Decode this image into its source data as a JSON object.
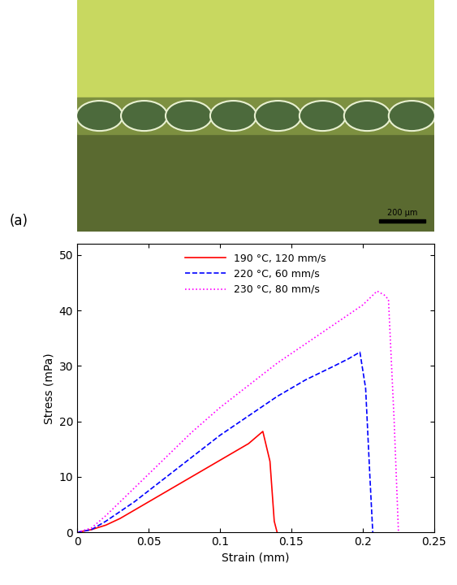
{
  "panel_a": {
    "label": "(a)",
    "scale_bar": "200 µm"
  },
  "chart_data": {
    "type": "line",
    "x_label": "Strain (mm)",
    "y_label": "Stress (mPa)",
    "xlim": [
      0,
      0.25
    ],
    "xticks": [
      0,
      0.05,
      0.1,
      0.15,
      0.2,
      0.25
    ],
    "ylim": [
      0,
      52
    ],
    "yticks": [
      0,
      10,
      20,
      30,
      40,
      50
    ],
    "legend": "upper center",
    "grid": false,
    "series": [
      {
        "name": "190 °C, 120 mm/s",
        "color": "#ff0000",
        "line_style": "solid",
        "x": [
          0,
          0.01,
          0.02,
          0.03,
          0.05,
          0.07,
          0.09,
          0.11,
          0.12,
          0.13,
          0.135,
          0.138,
          0.14
        ],
        "values": [
          0,
          0.5,
          1.3,
          2.5,
          5.5,
          8.5,
          11.5,
          14.5,
          16,
          18.2,
          12.8,
          2,
          0
        ]
      },
      {
        "name": "220 °C, 60 mm/s",
        "color": "#0000ff",
        "line_style": "dashed",
        "x": [
          0,
          0.01,
          0.02,
          0.04,
          0.06,
          0.08,
          0.1,
          0.12,
          0.14,
          0.16,
          0.18,
          0.19,
          0.198,
          0.202,
          0.205,
          0.207
        ],
        "values": [
          0,
          0.5,
          2,
          5.5,
          9.5,
          13.5,
          17.5,
          21,
          24.5,
          27.5,
          30,
          31.3,
          32.5,
          26,
          10,
          0
        ]
      },
      {
        "name": "230 °C, 80 mm/s",
        "color": "#ff00ff",
        "line_style": "dotted",
        "x": [
          0,
          0.01,
          0.02,
          0.04,
          0.06,
          0.08,
          0.1,
          0.12,
          0.14,
          0.16,
          0.18,
          0.2,
          0.21,
          0.215,
          0.218,
          0.222,
          0.225
        ],
        "values": [
          0,
          0.8,
          3,
          8,
          13,
          18,
          22.5,
          26.5,
          30.5,
          34,
          37.5,
          41,
          43.5,
          42.8,
          42,
          20,
          0
        ]
      }
    ]
  }
}
